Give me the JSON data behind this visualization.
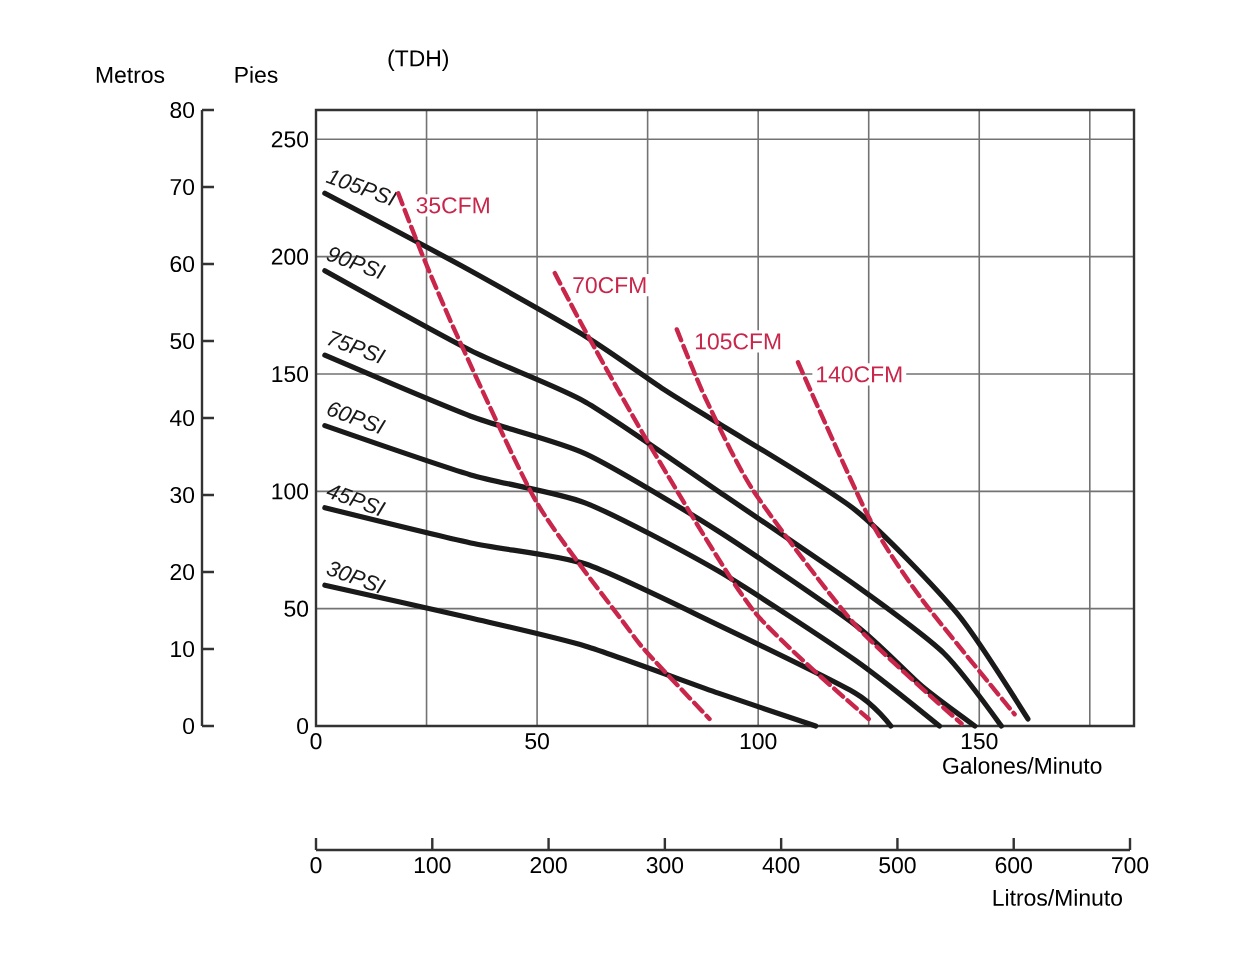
{
  "chart_data": {
    "type": "line",
    "xlabel": "Galones/Minuto",
    "ylabel": "Pies",
    "y2label": "Metros",
    "x2label": "Litros/Minuto",
    "annotations": [
      "(TDH)"
    ],
    "xlim": [
      0,
      185
    ],
    "xticks": [
      0,
      {
        "value": 25,
        "label": null
      },
      50,
      {
        "value": 75,
        "label": null
      },
      100,
      {
        "value": 125,
        "label": null
      },
      150,
      {
        "value": 175,
        "label": null
      }
    ],
    "ylim": [
      0,
      262.5
    ],
    "yticks": [
      0,
      50,
      100,
      150,
      200,
      250
    ],
    "y2lim": [
      0,
      80
    ],
    "y2ticks": [
      0,
      10,
      20,
      30,
      40,
      50,
      60,
      70,
      80
    ],
    "x2lim": [
      0,
      700
    ],
    "x2ticks": [
      0,
      100,
      200,
      300,
      400,
      500,
      600,
      700
    ],
    "grid": true,
    "series": [
      {
        "name": "105PSI",
        "color": "#1a1a1a",
        "line_style": "solid",
        "x": [
          2,
          33,
          61,
          79,
          91,
          122,
          145,
          161
        ],
        "values": [
          227,
          196,
          166,
          143,
          129,
          92,
          48,
          3
        ]
      },
      {
        "name": "90PSI",
        "color": "#1a1a1a",
        "line_style": "solid",
        "x": [
          2,
          35,
          61,
          91,
          122,
          142,
          155
        ],
        "values": [
          194,
          160,
          138,
          100,
          60,
          31,
          0
        ]
      },
      {
        "name": "75PSI",
        "color": "#1a1a1a",
        "line_style": "solid",
        "x": [
          2,
          35,
          61,
          91,
          122,
          137,
          149
        ],
        "values": [
          158,
          132,
          116,
          83,
          43,
          17,
          0
        ]
      },
      {
        "name": "60PSI",
        "color": "#1a1a1a",
        "line_style": "solid",
        "x": [
          2,
          35,
          61,
          91,
          122,
          141
        ],
        "values": [
          128,
          107,
          95,
          66,
          28,
          0
        ]
      },
      {
        "name": "45PSI",
        "color": "#1a1a1a",
        "line_style": "solid",
        "x": [
          2,
          35,
          61,
          91,
          122,
          130
        ],
        "values": [
          93,
          78,
          69,
          43,
          14,
          0
        ]
      },
      {
        "name": "30PSI",
        "color": "#1a1a1a",
        "line_style": "solid",
        "x": [
          2,
          35,
          61,
          91,
          113
        ],
        "values": [
          60,
          46,
          34,
          14,
          0
        ]
      },
      {
        "name": "35CFM",
        "color": "#c8264a",
        "line_style": "dashed",
        "x": [
          18.6,
          24,
          32,
          50,
          70,
          75,
          89
        ],
        "values": [
          227,
          201,
          166,
          95,
          43,
          31,
          3
        ]
      },
      {
        "name": "70CFM",
        "color": "#c8264a",
        "line_style": "dashed",
        "x": [
          54,
          61,
          76,
          99,
          125
        ],
        "values": [
          193,
          168,
          118,
          49,
          3
        ]
      },
      {
        "name": "105CFM",
        "color": "#c8264a",
        "line_style": "dashed",
        "x": [
          81.6,
          88,
          99,
          122,
          146
        ],
        "values": [
          169,
          140,
          100,
          43,
          1
        ]
      },
      {
        "name": "140CFM",
        "color": "#c8264a",
        "line_style": "dashed",
        "x": [
          109,
          125,
          137,
          158
        ],
        "values": [
          155,
          89,
          54,
          5
        ]
      }
    ]
  }
}
